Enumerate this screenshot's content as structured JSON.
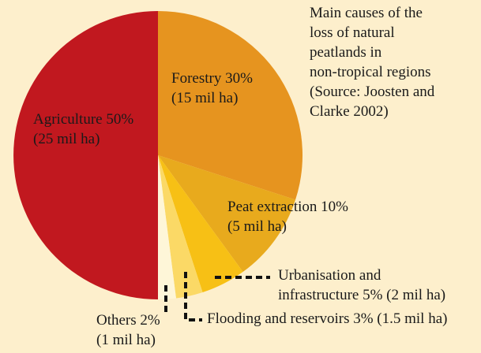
{
  "chart_data": {
    "type": "pie",
    "title": [
      "Main causes of the",
      "loss of natural",
      "peatlands in",
      "non-tropical regions",
      "(Source: Joosten and",
      "Clarke 2002)"
    ],
    "values": [
      30,
      10,
      5,
      3,
      2,
      50
    ],
    "labels": [
      [
        "Forestry 30%",
        "(15 mil ha)"
      ],
      [
        "Peat extraction 10%",
        "(5 mil ha)"
      ],
      [
        "Urbanisation and",
        "infrastructure 5% (2 mil ha)"
      ],
      [
        "Flooding and reservoirs 3% (1.5 mil ha)"
      ],
      [
        "Others 2%",
        "(1 mil ha)"
      ],
      [
        "Agriculture 50%",
        "(25 mil ha)"
      ]
    ],
    "colors": [
      "#e6941f",
      "#e8aa1d",
      "#f7c015",
      "#fbd966",
      "#fef6d8",
      "#c1181f"
    ]
  }
}
